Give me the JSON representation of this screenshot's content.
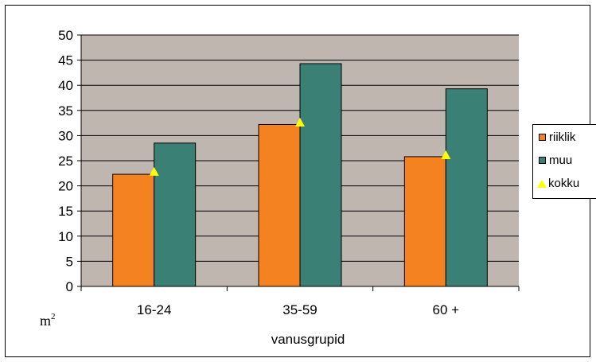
{
  "chart_data": {
    "type": "bar",
    "categories": [
      "16-24",
      "35-59",
      "60 +"
    ],
    "series": [
      {
        "name": "riiklik",
        "kind": "bar",
        "color": "#f58220",
        "values": [
          22.3,
          32.2,
          25.8
        ]
      },
      {
        "name": "muu",
        "kind": "bar",
        "color": "#3a8075",
        "values": [
          28.5,
          44.3,
          39.3
        ]
      },
      {
        "name": "kokku",
        "kind": "marker",
        "color": "#ffff00",
        "values": [
          22.8,
          32.6,
          26.1
        ]
      }
    ],
    "xlabel": "vanusgrupid",
    "ylabel": "",
    "unit_base": "m",
    "unit_exp": "2",
    "ylim": [
      0,
      50
    ],
    "yticks": [
      "0",
      "5",
      "10",
      "15",
      "20",
      "25",
      "30",
      "35",
      "40",
      "45",
      "50"
    ],
    "grid": true,
    "plot_background": "#c0b6b0",
    "legend_position": "right"
  }
}
